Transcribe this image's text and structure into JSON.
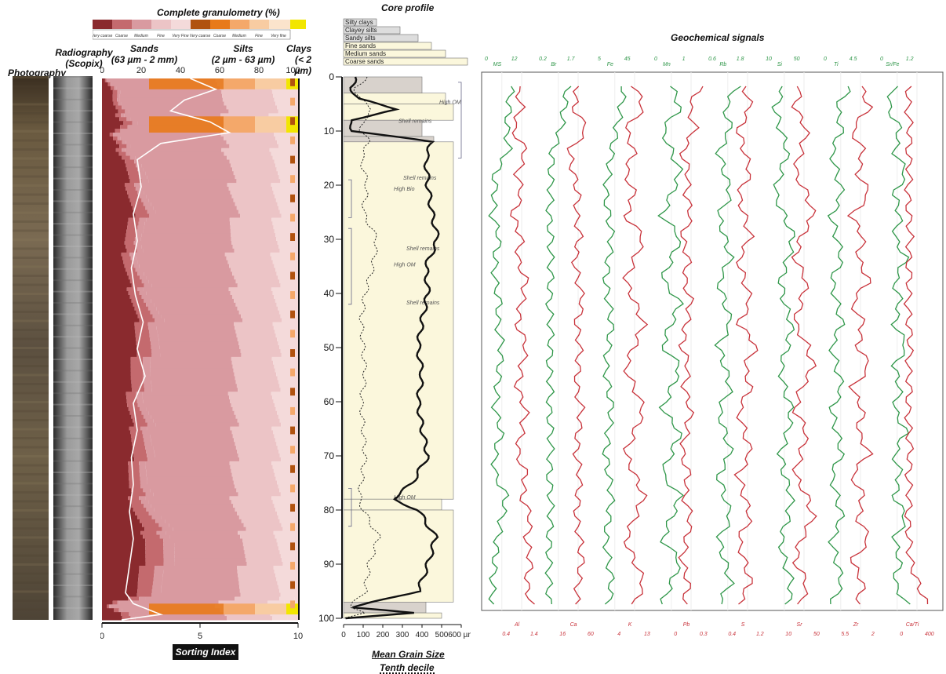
{
  "headers": {
    "photography": "Photography",
    "radiography": [
      "Radiography",
      "(Scopix)"
    ],
    "granulometry_title": "Complete granulometry (%)",
    "core_profile": "Core profile",
    "geochem": "Geochemical signals",
    "sands": [
      "Sands",
      "(63 µm - 2 mm)"
    ],
    "silts": [
      "Silts",
      "(2 µm - 63 µm)"
    ],
    "clays": [
      "Clays",
      "(< 2 µm)"
    ],
    "sorting_index": "Sorting Index",
    "mean_grain_size": "Mean Grain Size",
    "tenth_decile": "Tenth decile"
  },
  "colors": {
    "v_coarse_sand": "#8a2a2e",
    "coarse_sand": "#c46a6e",
    "medium_sand": "#d99aa0",
    "fine_sand": "#ecc4c6",
    "vfine_sand": "#f4dada",
    "v_coarse_silt": "#b0520f",
    "coarse_silt": "#e87a1a",
    "medium_silt": "#f4a86a",
    "fine_silt": "#f8cca2",
    "vfine_silt": "#fbe4cc",
    "clay": "#f2e600",
    "core_fill": "#fbf7dc",
    "green_curve": "#2e9648",
    "red_curve": "#c8323a"
  },
  "chart_data": [
    {
      "type": "area",
      "title": "Complete granulometry (%)",
      "xlabel": "",
      "ylabel": "",
      "xlim": [
        0,
        100
      ],
      "ylim": [
        0,
        100
      ],
      "x_ticks": [
        "0",
        "20",
        "40",
        "60",
        "80",
        "100 %"
      ],
      "legend": [
        "Very coarse",
        "Coarse",
        "Medium",
        "Fine",
        "Very Fine",
        "Very coarse",
        "Coarse",
        "Medium",
        "Fine",
        "Very fine"
      ],
      "depth": [
        0,
        2,
        4,
        6,
        8,
        10,
        12,
        15,
        20,
        25,
        30,
        35,
        40,
        45,
        50,
        55,
        60,
        65,
        70,
        75,
        80,
        85,
        90,
        95,
        97,
        99,
        100
      ],
      "series": [
        {
          "name": "Sands",
          "values": [
            5,
            10,
            8,
            12,
            20,
            6,
            12,
            20,
            22,
            26,
            18,
            20,
            25,
            30,
            28,
            24,
            22,
            26,
            25,
            22,
            28,
            38,
            34,
            28,
            5,
            20,
            10
          ]
        },
        {
          "name": "Silts",
          "values": [
            92,
            86,
            88,
            84,
            74,
            90,
            84,
            76,
            74,
            70,
            78,
            76,
            71,
            66,
            68,
            72,
            74,
            70,
            71,
            74,
            68,
            58,
            62,
            68,
            90,
            74,
            86
          ]
        },
        {
          "name": "Clays",
          "values": [
            3,
            4,
            4,
            4,
            6,
            4,
            4,
            4,
            4,
            4,
            4,
            4,
            4,
            4,
            4,
            4,
            4,
            4,
            4,
            4,
            4,
            4,
            4,
            4,
            5,
            6,
            4
          ]
        }
      ]
    },
    {
      "type": "line",
      "title": "Sorting Index",
      "xlim": [
        0,
        10
      ],
      "x_ticks": [
        "0",
        "5",
        "10"
      ],
      "depth": [
        0,
        2,
        4,
        6,
        8,
        10,
        12,
        15,
        20,
        25,
        30,
        35,
        40,
        45,
        50,
        55,
        60,
        65,
        70,
        75,
        80,
        85,
        90,
        95,
        97,
        99,
        100
      ],
      "values": [
        4.5,
        5.8,
        4.2,
        3.5,
        5.5,
        6.5,
        3.0,
        1.8,
        2.0,
        1.6,
        1.8,
        1.5,
        1.7,
        2.1,
        1.8,
        2.2,
        1.6,
        1.8,
        1.5,
        1.6,
        1.4,
        1.6,
        1.4,
        1.2,
        1.6,
        3.0,
        1.0
      ]
    },
    {
      "type": "line",
      "title": "Core profile",
      "xlim": [
        0,
        600
      ],
      "x_ticks": [
        "0",
        "100",
        "200",
        "300",
        "400",
        "500",
        "600 µm"
      ],
      "y_ticks": [
        "0",
        "10",
        "20",
        "30",
        "40",
        "50",
        "60",
        "70",
        "80",
        "90",
        "100"
      ],
      "legend": [
        "Silty clays",
        "Clayey silts",
        "Sandy silts",
        "Fine sands",
        "Medium sands",
        "Coarse sands"
      ],
      "annotations": [
        "High OM",
        "Shell remains",
        "Shell remains",
        "High Bio",
        "Shell remains",
        "High OM",
        "Shell remains",
        "High OM"
      ],
      "depth": [
        0,
        2,
        4,
        6,
        8,
        10,
        12,
        15,
        20,
        25,
        30,
        35,
        40,
        45,
        50,
        55,
        60,
        65,
        70,
        75,
        78,
        80,
        85,
        90,
        95,
        98,
        99,
        100
      ],
      "series": [
        {
          "name": "Mean Grain Size",
          "values": [
            60,
            40,
            70,
            280,
            30,
            50,
            450,
            420,
            430,
            450,
            480,
            420,
            430,
            400,
            380,
            400,
            380,
            400,
            430,
            350,
            250,
            380,
            470,
            430,
            380,
            40,
            350,
            20
          ]
        },
        {
          "name": "Tenth decile",
          "values": [
            120,
            60,
            80,
            150,
            100,
            90,
            130,
            90,
            120,
            100,
            170,
            150,
            110,
            90,
            100,
            110,
            90,
            100,
            110,
            90,
            80,
            100,
            180,
            130,
            110,
            30,
            100,
            10
          ]
        }
      ]
    },
    {
      "type": "line",
      "title": "Geochemical signals",
      "ylim": [
        0,
        100
      ],
      "tracks": [
        {
          "name": "MS",
          "color": "green",
          "top_ticks": [
            "0",
            "12"
          ],
          "values": [
            10,
            9,
            8,
            9,
            3,
            3,
            2,
            5,
            3,
            3,
            5,
            4,
            6,
            5,
            4,
            3,
            6,
            3,
            3,
            8,
            6,
            4,
            3,
            2,
            2
          ]
        },
        {
          "name": "Al",
          "color": "red",
          "bottom_ticks": [
            "0.4",
            "1.4"
          ],
          "values": [
            0.7,
            0.8,
            0.6,
            0.9,
            0.7,
            0.8,
            0.6,
            0.8,
            0.7,
            0.9,
            0.8,
            0.7,
            0.9,
            0.8,
            0.7,
            0.9,
            0.8,
            0.7,
            0.9,
            0.8,
            1.0,
            0.9,
            1.0,
            0.9,
            1.0
          ]
        },
        {
          "name": "Br",
          "color": "green",
          "top_ticks": [
            "0.2",
            "1.7"
          ],
          "values": [
            1.4,
            1.2,
            1.0,
            0.5,
            0.4,
            0.4,
            0.3,
            0.4,
            0.4,
            0.4,
            0.3,
            0.4,
            0.4,
            0.3,
            0.4,
            0.3,
            0.4,
            0.4,
            0.3,
            0.4,
            0.4,
            0.3,
            0.3,
            0.3,
            0.3
          ]
        },
        {
          "name": "Ca",
          "color": "red",
          "bottom_ticks": [
            "16",
            "60"
          ],
          "values": [
            40,
            35,
            50,
            30,
            35,
            40,
            38,
            42,
            36,
            40,
            45,
            38,
            42,
            40,
            38,
            44,
            40,
            38,
            42,
            40,
            38,
            42,
            44,
            40,
            38
          ]
        },
        {
          "name": "Fe",
          "color": "green",
          "top_ticks": [
            "5",
            "45"
          ],
          "values": [
            30,
            28,
            25,
            22,
            20,
            18,
            20,
            22,
            20,
            18,
            20,
            22,
            20,
            18,
            20,
            22,
            20,
            18,
            20,
            22,
            20,
            18,
            20,
            22,
            20
          ]
        },
        {
          "name": "K",
          "color": "red",
          "bottom_ticks": [
            "4",
            "13"
          ],
          "values": [
            9,
            10,
            8,
            9,
            8,
            9,
            8,
            10,
            9,
            8,
            9,
            10,
            9,
            8,
            9,
            10,
            9,
            8,
            9,
            10,
            9,
            8,
            9,
            10,
            9
          ]
        },
        {
          "name": "Mn",
          "color": "green",
          "top_ticks": [
            "0",
            "1"
          ],
          "values": [
            0.5,
            0.6,
            0.4,
            0.5,
            0.6,
            0.5,
            0.4,
            0.6,
            0.5,
            0.4,
            0.6,
            0.5,
            0.4,
            0.6,
            0.5,
            0.4,
            0.6,
            0.5,
            0.4,
            0.6,
            0.5,
            0.4,
            0.6,
            0.5,
            0.4
          ]
        },
        {
          "name": "Pb",
          "color": "red",
          "bottom_ticks": [
            "0",
            "0.3"
          ],
          "values": [
            0.2,
            0.15,
            0.18,
            0.12,
            0.15,
            0.14,
            0.16,
            0.12,
            0.15,
            0.13,
            0.16,
            0.14,
            0.12,
            0.15,
            0.13,
            0.16,
            0.14,
            0.12,
            0.15,
            0.13,
            0.16,
            0.14,
            0.12,
            0.15,
            0.13
          ]
        },
        {
          "name": "Rb",
          "color": "green",
          "top_ticks": [
            "0.6",
            "1.8"
          ],
          "values": [
            1.2,
            1.0,
            1.1,
            0.9,
            1.0,
            1.1,
            0.9,
            1.0,
            1.1,
            0.9,
            1.0,
            1.1,
            0.9,
            1.0,
            1.1,
            0.9,
            1.0,
            1.1,
            0.9,
            1.0,
            1.1,
            0.9,
            1.0,
            1.1,
            0.9
          ]
        },
        {
          "name": "S",
          "color": "red",
          "bottom_ticks": [
            "0.4",
            "1.2"
          ],
          "values": [
            0.8,
            0.9,
            0.7,
            0.8,
            0.9,
            0.7,
            0.8,
            0.9,
            0.7,
            0.8,
            0.9,
            0.7,
            1.0,
            0.8,
            0.9,
            0.7,
            0.8,
            0.9,
            0.7,
            0.8,
            0.9,
            0.7,
            0.8,
            0.9,
            0.7
          ]
        },
        {
          "name": "Si",
          "color": "green",
          "top_ticks": [
            "10",
            "50"
          ],
          "values": [
            30,
            25,
            28,
            32,
            28,
            25,
            30,
            35,
            32,
            28,
            30,
            34,
            32,
            28,
            30,
            34,
            32,
            28,
            30,
            34,
            32,
            28,
            30,
            34,
            32
          ]
        },
        {
          "name": "Sr",
          "color": "red",
          "bottom_ticks": [
            "10",
            "50"
          ],
          "values": [
            30,
            28,
            32,
            30,
            28,
            32,
            34,
            30,
            28,
            32,
            30,
            28,
            32,
            34,
            30,
            28,
            32,
            30,
            28,
            32,
            34,
            30,
            28,
            32,
            30
          ]
        },
        {
          "name": "Ti",
          "color": "green",
          "top_ticks": [
            "0",
            "4.5"
          ],
          "values": [
            2.5,
            2.0,
            2.2,
            1.8,
            2.0,
            2.2,
            1.8,
            2.0,
            2.2,
            1.8,
            2.0,
            2.2,
            1.8,
            2.0,
            2.2,
            1.8,
            2.0,
            2.2,
            1.8,
            2.0,
            2.2,
            1.8,
            2.0,
            2.2,
            1.8
          ]
        },
        {
          "name": "Zr",
          "color": "red",
          "bottom_ticks": [
            "5.5",
            "2"
          ],
          "values": [
            3.5,
            3.8,
            3.2,
            3.6,
            3.4,
            3.8,
            3.2,
            3.6,
            3.4,
            3.8,
            3.2,
            3.6,
            3.4,
            3.8,
            3.2,
            3.6,
            3.4,
            3.8,
            3.2,
            3.6,
            3.4,
            3.8,
            3.2,
            3.6,
            3.4
          ]
        },
        {
          "name": "Sr/Fe",
          "color": "green",
          "top_ticks": [
            "0",
            "1.2"
          ],
          "values": [
            0.3,
            0.2,
            0.4,
            0.3,
            0.5,
            0.3,
            0.4,
            0.3,
            0.5,
            0.3,
            0.4,
            0.3,
            0.5,
            0.3,
            0.4,
            0.3,
            0.5,
            0.3,
            0.4,
            0.3,
            0.5,
            0.3,
            0.4,
            0.3,
            0.5
          ]
        },
        {
          "name": "Ca/Ti",
          "color": "red",
          "bottom_ticks": [
            "0",
            "400"
          ],
          "values": [
            120,
            100,
            140,
            110,
            130,
            100,
            120,
            140,
            110,
            130,
            100,
            120,
            140,
            110,
            130,
            100,
            120,
            140,
            110,
            130,
            100,
            120,
            140,
            250,
            380
          ]
        }
      ]
    }
  ]
}
